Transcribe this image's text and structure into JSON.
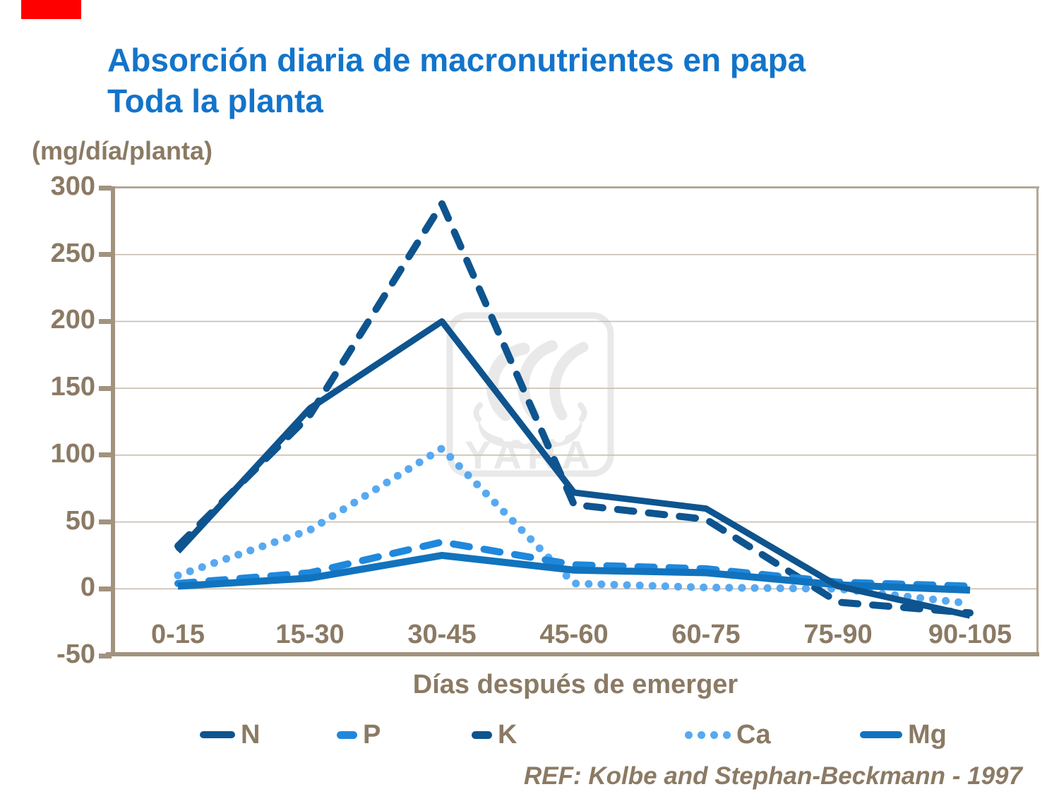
{
  "header": {
    "red_bar_color": "#FE0000",
    "title_line1": "Absorción diaria de macronutrientes en papa",
    "title_line2": "Toda la planta",
    "title_color": "#1374CA"
  },
  "watermark": {
    "text": "YARA",
    "color": "#E9E9E9"
  },
  "footer": {
    "ref": "REF: Kolbe and Stephan-Beckmann - 1997"
  },
  "axis": {
    "text_color": "#8B7A64",
    "axis_color": "#A2937F",
    "border_color": "#B3A795",
    "grid_color": "#C9BEB0"
  },
  "chart_data": {
    "type": "line",
    "title": "Absorción diaria de macronutrientes en papa — Toda la planta",
    "ylabel": "(mg/día/planta)",
    "xlabel": "Días después de emerger",
    "categories": [
      "0-15",
      "15-30",
      "30-45",
      "45-60",
      "60-75",
      "75-90",
      "90-105"
    ],
    "yticks": [
      300,
      250,
      200,
      150,
      100,
      50,
      0,
      -50
    ],
    "ylim": [
      -50,
      300
    ],
    "grid": true,
    "legend_position": "bottom",
    "draw_order": [
      "Ca",
      "K",
      "P",
      "Mg",
      "N"
    ],
    "series": [
      {
        "name": "N",
        "style": "solid",
        "color": "#0E548F",
        "width": 9,
        "values": [
          28,
          135,
          200,
          72,
          60,
          2,
          -20
        ]
      },
      {
        "name": "P",
        "style": "dashed",
        "color": "#1F88DC",
        "width": 10,
        "values": [
          4,
          12,
          35,
          18,
          15,
          5,
          2
        ]
      },
      {
        "name": "K",
        "style": "dashed",
        "color": "#0E548F",
        "width": 10,
        "values": [
          32,
          130,
          288,
          63,
          52,
          -10,
          -18
        ]
      },
      {
        "name": "Ca",
        "style": "dotted",
        "color": "#57A9F1",
        "width": 11,
        "values": [
          10,
          44,
          105,
          4,
          1,
          0,
          -11
        ]
      },
      {
        "name": "Mg",
        "style": "solid",
        "color": "#1173BE",
        "width": 10,
        "values": [
          2,
          8,
          25,
          14,
          12,
          3,
          -1
        ]
      }
    ]
  }
}
